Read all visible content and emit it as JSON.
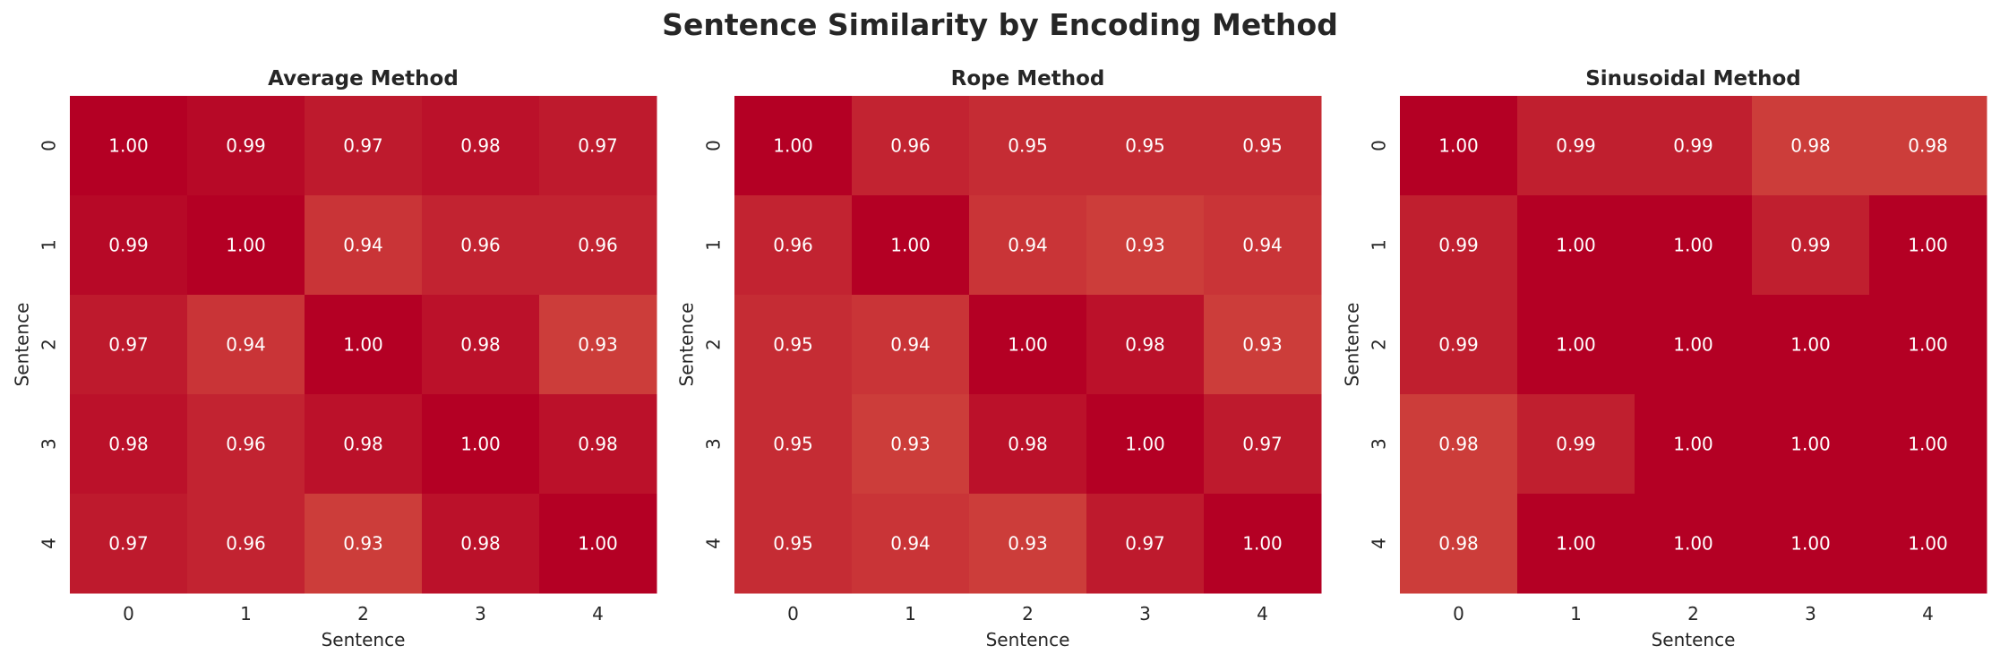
{
  "figure_title": "Sentence Similarity by Encoding Method",
  "colors": {
    "low": "#cc3d3a",
    "high": "#b40024",
    "text": "#ffffff",
    "axis_text": "#262626"
  },
  "chart_data": [
    {
      "type": "heatmap",
      "title": "Average Method",
      "xlabel": "Sentence",
      "ylabel": "Sentence",
      "x": [
        "0",
        "1",
        "2",
        "3",
        "4"
      ],
      "y": [
        "0",
        "1",
        "2",
        "3",
        "4"
      ],
      "values": [
        [
          1.0,
          0.99,
          0.97,
          0.98,
          0.97
        ],
        [
          0.99,
          1.0,
          0.94,
          0.96,
          0.96
        ],
        [
          0.97,
          0.94,
          1.0,
          0.98,
          0.93
        ],
        [
          0.98,
          0.96,
          0.98,
          1.0,
          0.98
        ],
        [
          0.97,
          0.96,
          0.93,
          0.98,
          1.0
        ]
      ]
    },
    {
      "type": "heatmap",
      "title": "Rope Method",
      "xlabel": "Sentence",
      "ylabel": "Sentence",
      "x": [
        "0",
        "1",
        "2",
        "3",
        "4"
      ],
      "y": [
        "0",
        "1",
        "2",
        "3",
        "4"
      ],
      "values": [
        [
          1.0,
          0.96,
          0.95,
          0.95,
          0.95
        ],
        [
          0.96,
          1.0,
          0.94,
          0.93,
          0.94
        ],
        [
          0.95,
          0.94,
          1.0,
          0.98,
          0.93
        ],
        [
          0.95,
          0.93,
          0.98,
          1.0,
          0.97
        ],
        [
          0.95,
          0.94,
          0.93,
          0.97,
          1.0
        ]
      ]
    },
    {
      "type": "heatmap",
      "title": "Sinusoidal Method",
      "xlabel": "Sentence",
      "ylabel": "Sentence",
      "x": [
        "0",
        "1",
        "2",
        "3",
        "4"
      ],
      "y": [
        "0",
        "1",
        "2",
        "3",
        "4"
      ],
      "values": [
        [
          1.0,
          0.99,
          0.99,
          0.98,
          0.98
        ],
        [
          0.99,
          1.0,
          1.0,
          0.99,
          1.0
        ],
        [
          0.99,
          1.0,
          1.0,
          1.0,
          1.0
        ],
        [
          0.98,
          0.99,
          1.0,
          1.0,
          1.0
        ],
        [
          0.98,
          1.0,
          1.0,
          1.0,
          1.0
        ]
      ]
    }
  ]
}
